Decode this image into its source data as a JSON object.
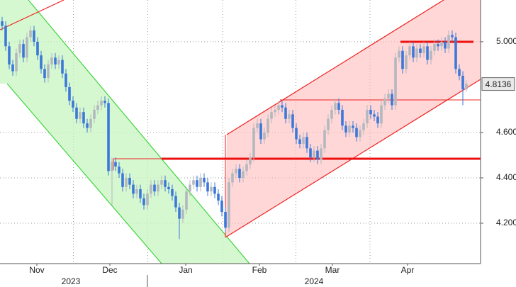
{
  "chart_data": {
    "type": "candlestick",
    "open": [
      5.09,
      5.07,
      4.98,
      4.9,
      4.87,
      4.95,
      4.99,
      4.93,
      5.02,
      5.05,
      5.0,
      4.94,
      4.88,
      4.84,
      4.9,
      4.93,
      4.9,
      4.92,
      4.86,
      4.8,
      4.74,
      4.71,
      4.66,
      4.69,
      4.64,
      4.62,
      4.66,
      4.7,
      4.72,
      4.74,
      4.73,
      4.43,
      4.47,
      4.45,
      4.42,
      4.36,
      4.4,
      4.37,
      4.33,
      4.35,
      4.31,
      4.28,
      4.33,
      4.37,
      4.34,
      4.37,
      4.39,
      4.36,
      4.35,
      4.32,
      4.27,
      4.22,
      4.26,
      4.34,
      4.37,
      4.39,
      4.36,
      4.4,
      4.38,
      4.34,
      4.36,
      4.33,
      4.3,
      4.25,
      4.18,
      4.38,
      4.42,
      4.44,
      4.4,
      4.43,
      4.46,
      4.49,
      4.62,
      4.64,
      4.57,
      4.6,
      4.66,
      4.69,
      4.7,
      4.72,
      4.71,
      4.66,
      4.68,
      4.62,
      4.57,
      4.55,
      4.58,
      4.53,
      4.49,
      4.52,
      4.48,
      4.53,
      4.61,
      4.66,
      4.7,
      4.73,
      4.7,
      4.63,
      4.6,
      4.63,
      4.62,
      4.58,
      4.61,
      4.64,
      4.7,
      4.68,
      4.67,
      4.64,
      4.72,
      4.75,
      4.77,
      4.72,
      4.93,
      4.96,
      4.88,
      4.94,
      4.98,
      4.93,
      4.97,
      4.95,
      4.98,
      4.92,
      4.96,
      4.99,
      4.98,
      5.0,
      4.97,
      5.03,
      5.02,
      4.88,
      4.85,
      4.79
    ],
    "high": [
      5.11,
      5.09,
      5.0,
      4.92,
      4.97,
      5.01,
      5.01,
      5.04,
      5.07,
      5.07,
      5.02,
      4.96,
      4.9,
      4.92,
      4.95,
      4.95,
      4.94,
      4.94,
      4.88,
      4.82,
      4.76,
      4.73,
      4.71,
      4.71,
      4.66,
      4.68,
      4.72,
      4.74,
      4.76,
      4.76,
      4.75,
      4.49,
      4.49,
      4.47,
      4.44,
      4.42,
      4.42,
      4.39,
      4.37,
      4.37,
      4.33,
      4.35,
      4.39,
      4.39,
      4.39,
      4.41,
      4.41,
      4.38,
      4.37,
      4.34,
      4.29,
      4.28,
      4.36,
      4.39,
      4.41,
      4.41,
      4.42,
      4.42,
      4.4,
      4.38,
      4.38,
      4.35,
      4.32,
      4.27,
      4.4,
      4.44,
      4.46,
      4.46,
      4.45,
      4.48,
      4.51,
      4.64,
      4.66,
      4.66,
      4.62,
      4.68,
      4.71,
      4.72,
      4.74,
      4.74,
      4.73,
      4.7,
      4.7,
      4.64,
      4.59,
      4.6,
      4.6,
      4.55,
      4.54,
      4.54,
      4.55,
      4.63,
      4.68,
      4.72,
      4.75,
      4.75,
      4.72,
      4.65,
      4.65,
      4.65,
      4.64,
      4.63,
      4.66,
      4.72,
      4.72,
      4.7,
      4.69,
      4.74,
      4.77,
      4.79,
      4.79,
      4.95,
      4.98,
      4.98,
      4.96,
      5.0,
      5.0,
      4.99,
      4.99,
      5.0,
      5.0,
      4.98,
      5.01,
      5.01,
      5.02,
      5.02,
      5.05,
      5.05,
      5.04,
      4.9,
      4.87,
      4.83
    ],
    "low": [
      5.05,
      4.96,
      4.88,
      4.85,
      4.85,
      4.93,
      4.91,
      4.91,
      5.0,
      4.98,
      4.92,
      4.86,
      4.82,
      4.82,
      4.88,
      4.88,
      4.88,
      4.84,
      4.78,
      4.72,
      4.69,
      4.64,
      4.64,
      4.62,
      4.6,
      4.6,
      4.64,
      4.68,
      4.7,
      4.71,
      4.41,
      4.28,
      4.43,
      4.4,
      4.34,
      4.34,
      4.35,
      4.31,
      4.31,
      4.29,
      4.26,
      4.26,
      4.31,
      4.32,
      4.32,
      4.35,
      4.34,
      4.33,
      4.3,
      4.25,
      4.13,
      4.2,
      4.24,
      4.32,
      4.35,
      4.34,
      4.34,
      4.36,
      4.32,
      4.32,
      4.31,
      4.28,
      4.23,
      4.16,
      4.16,
      4.36,
      4.4,
      4.38,
      4.38,
      4.41,
      4.44,
      4.47,
      4.6,
      4.55,
      4.55,
      4.58,
      4.64,
      4.67,
      4.68,
      4.69,
      4.64,
      4.64,
      4.6,
      4.55,
      4.53,
      4.53,
      4.51,
      4.47,
      4.47,
      4.46,
      4.46,
      4.51,
      4.59,
      4.64,
      4.68,
      4.68,
      4.61,
      4.58,
      4.58,
      4.6,
      4.56,
      4.56,
      4.59,
      4.62,
      4.66,
      4.65,
      4.62,
      4.62,
      4.7,
      4.73,
      4.7,
      4.7,
      4.91,
      4.86,
      4.86,
      4.92,
      4.91,
      4.91,
      4.93,
      4.93,
      4.9,
      4.9,
      4.94,
      4.96,
      4.96,
      4.95,
      4.95,
      5.0,
      4.86,
      4.83,
      4.72,
      4.78
    ],
    "close": [
      5.07,
      4.98,
      4.9,
      4.87,
      4.95,
      4.99,
      4.93,
      5.02,
      5.05,
      5.0,
      4.94,
      4.88,
      4.84,
      4.9,
      4.93,
      4.9,
      4.92,
      4.86,
      4.8,
      4.74,
      4.71,
      4.66,
      4.69,
      4.64,
      4.62,
      4.66,
      4.7,
      4.72,
      4.74,
      4.73,
      4.43,
      4.47,
      4.45,
      4.42,
      4.36,
      4.4,
      4.37,
      4.33,
      4.35,
      4.31,
      4.28,
      4.33,
      4.37,
      4.34,
      4.37,
      4.39,
      4.36,
      4.35,
      4.32,
      4.27,
      4.22,
      4.26,
      4.34,
      4.37,
      4.39,
      4.36,
      4.4,
      4.38,
      4.34,
      4.36,
      4.33,
      4.3,
      4.25,
      4.18,
      4.38,
      4.42,
      4.44,
      4.4,
      4.43,
      4.46,
      4.49,
      4.62,
      4.64,
      4.57,
      4.6,
      4.66,
      4.69,
      4.7,
      4.72,
      4.71,
      4.66,
      4.68,
      4.62,
      4.57,
      4.55,
      4.58,
      4.53,
      4.49,
      4.52,
      4.48,
      4.53,
      4.61,
      4.66,
      4.7,
      4.73,
      4.7,
      4.63,
      4.6,
      4.63,
      4.62,
      4.58,
      4.61,
      4.64,
      4.7,
      4.68,
      4.67,
      4.64,
      4.72,
      4.75,
      4.77,
      4.72,
      4.93,
      4.96,
      4.88,
      4.94,
      4.98,
      4.93,
      4.97,
      4.95,
      4.98,
      4.92,
      4.96,
      4.99,
      4.98,
      5.0,
      4.97,
      5.03,
      5.02,
      4.88,
      4.85,
      4.79,
      4.815
    ],
    "up_color": "#b4b8be",
    "down_color": "#3b78d8",
    "xlim": [
      -0.6,
      135
    ],
    "xticks": [
      {
        "value": 9.8,
        "label": "Nov"
      },
      {
        "value": 30.4,
        "label": "Dec"
      },
      {
        "value": 51.8,
        "label": "Jan"
      },
      {
        "value": 72.6,
        "label": "Feb"
      },
      {
        "value": 93.2,
        "label": "Mar"
      },
      {
        "value": 114.4,
        "label": "Apr"
      }
    ],
    "years": [
      "2023",
      "2024"
    ],
    "ylim": [
      4.022,
      5.184
    ],
    "yticks": [
      {
        "value": 4.2,
        "label": "4.2000"
      },
      {
        "value": 4.4,
        "label": "4.4000"
      },
      {
        "value": 4.6,
        "label": "4.6000"
      },
      {
        "value": 5.0,
        "label": "5.0000"
      }
    ],
    "last_price": 4.8136,
    "grid": true
  }
}
